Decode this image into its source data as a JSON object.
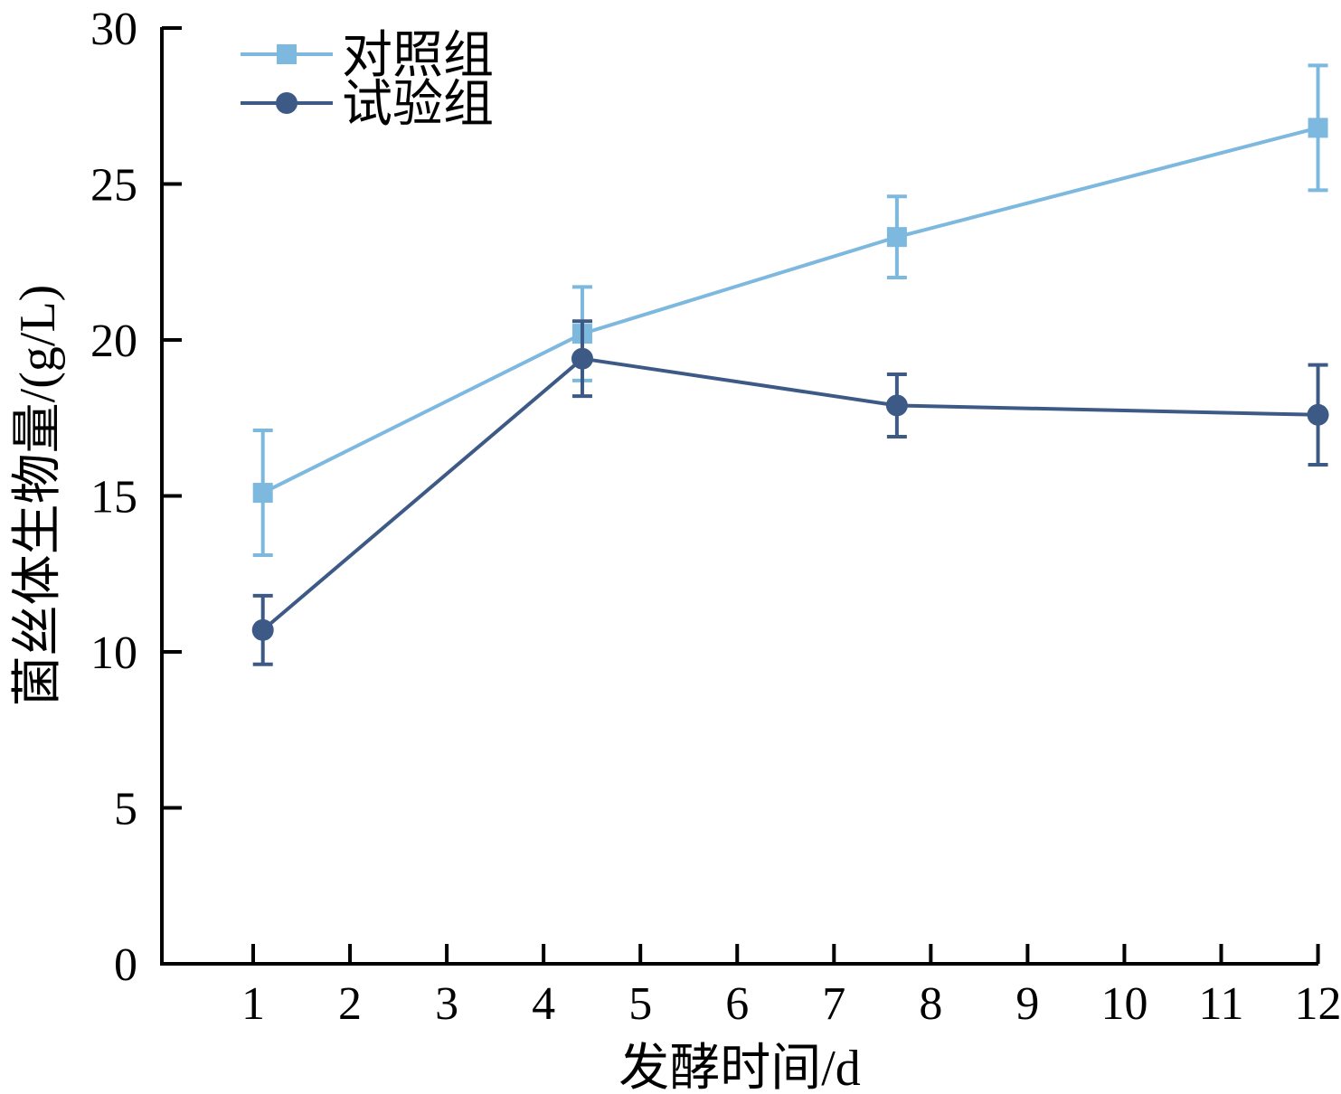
{
  "chart_data": {
    "type": "line",
    "xlabel": "发酵时间/d",
    "ylabel": "菌丝体生物量/(g/L)",
    "xlim": [
      0,
      12
    ],
    "ylim": [
      0,
      30
    ],
    "xticks": [
      1,
      2,
      3,
      4,
      5,
      6,
      7,
      8,
      9,
      10,
      11,
      12
    ],
    "yticks": [
      0,
      5,
      10,
      15,
      20,
      25,
      30
    ],
    "grid": false,
    "legend_position": "top-left",
    "series": [
      {
        "name": "对照组",
        "color": "#7db8de",
        "marker": "square",
        "x": [
          1.1,
          4.4,
          7.65,
          12
        ],
        "y": [
          15.1,
          20.2,
          23.3,
          26.8
        ],
        "error": [
          2.0,
          1.5,
          1.3,
          2.0
        ]
      },
      {
        "name": "试验组",
        "color": "#3d5a87",
        "marker": "circle",
        "x": [
          1.1,
          4.4,
          7.65,
          12
        ],
        "y": [
          10.7,
          19.4,
          17.9,
          17.6
        ],
        "error": [
          1.1,
          1.2,
          1.0,
          1.6
        ]
      }
    ]
  }
}
